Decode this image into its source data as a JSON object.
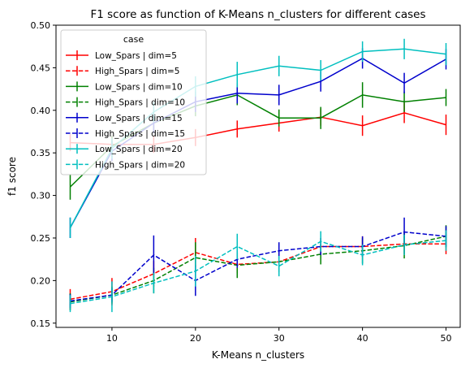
{
  "chart_data": {
    "type": "line",
    "title": "F1 score as function of K-Means n_clusters for different cases",
    "xlabel": "K-Means n_clusters",
    "ylabel": "f1 score",
    "xlim": [
      3.3,
      51.7
    ],
    "ylim": [
      0.145,
      0.5
    ],
    "xticks": [
      10,
      20,
      30,
      40,
      50
    ],
    "yticks": [
      0.15,
      0.2,
      0.25,
      0.3,
      0.35,
      0.4,
      0.45,
      0.5
    ],
    "ytick_labels": [
      "0.15",
      "0.20",
      "0.25",
      "0.30",
      "0.35",
      "0.40",
      "0.45",
      "0.50"
    ],
    "legend": {
      "title": "case",
      "placement": "upper-left"
    },
    "x": [
      5,
      10,
      15,
      20,
      25,
      30,
      35,
      40,
      45,
      50
    ],
    "series": [
      {
        "name": "Low_Spars | dim=5",
        "color": "#ff0000",
        "style": "solid",
        "values": [
          0.362,
          0.36,
          0.36,
          0.368,
          0.378,
          0.385,
          0.392,
          0.382,
          0.397,
          0.383
        ],
        "errors": [
          0.01,
          0.01,
          0.01,
          0.01,
          0.01,
          0.01,
          0.01,
          0.012,
          0.012,
          0.012
        ]
      },
      {
        "name": "High_Spars | dim=5",
        "color": "#ff0000",
        "style": "dashed",
        "values": [
          0.178,
          0.187,
          0.208,
          0.233,
          0.219,
          0.222,
          0.24,
          0.24,
          0.243,
          0.243
        ],
        "errors": [
          0.012,
          0.016,
          0.015,
          0.017,
          0.01,
          0.012,
          0.01,
          0.012,
          0.012,
          0.012
        ]
      },
      {
        "name": "Low_Spars | dim=10",
        "color": "#008000",
        "style": "solid",
        "values": [
          0.31,
          0.358,
          0.385,
          0.405,
          0.418,
          0.391,
          0.391,
          0.418,
          0.41,
          0.415
        ],
        "errors": [
          0.015,
          0.012,
          0.012,
          0.012,
          0.012,
          0.01,
          0.013,
          0.015,
          0.012,
          0.01
        ]
      },
      {
        "name": "High_Spars | dim=10",
        "color": "#008000",
        "style": "dashed",
        "values": [
          0.175,
          0.183,
          0.2,
          0.227,
          0.218,
          0.222,
          0.231,
          0.235,
          0.241,
          0.252
        ],
        "errors": [
          0.01,
          0.01,
          0.015,
          0.018,
          0.015,
          0.012,
          0.012,
          0.015,
          0.015,
          0.013
        ]
      },
      {
        "name": "Low_Spars | dim=15",
        "color": "#0000cc",
        "style": "solid",
        "values": [
          0.262,
          0.352,
          0.385,
          0.41,
          0.42,
          0.418,
          0.434,
          0.461,
          0.432,
          0.46
        ],
        "errors": [
          0.012,
          0.012,
          0.012,
          0.012,
          0.012,
          0.012,
          0.012,
          0.012,
          0.012,
          0.012
        ]
      },
      {
        "name": "High_Spars | dim=15",
        "color": "#0000cc",
        "style": "dashed",
        "values": [
          0.176,
          0.183,
          0.23,
          0.2,
          0.225,
          0.235,
          0.24,
          0.24,
          0.257,
          0.252
        ],
        "errors": [
          0.008,
          0.008,
          0.023,
          0.018,
          0.01,
          0.01,
          0.01,
          0.012,
          0.017,
          0.012
        ]
      },
      {
        "name": "Low_Spars | dim=20",
        "color": "#00bfbf",
        "style": "solid",
        "values": [
          0.262,
          0.355,
          0.398,
          0.428,
          0.442,
          0.452,
          0.447,
          0.469,
          0.472,
          0.466
        ],
        "errors": [
          0.012,
          0.012,
          0.012,
          0.012,
          0.015,
          0.012,
          0.012,
          0.012,
          0.012,
          0.013
        ]
      },
      {
        "name": "High_Spars | dim=20",
        "color": "#00bfbf",
        "style": "dashed",
        "values": [
          0.173,
          0.181,
          0.197,
          0.211,
          0.24,
          0.217,
          0.246,
          0.23,
          0.242,
          0.247
        ],
        "errors": [
          0.01,
          0.018,
          0.012,
          0.018,
          0.015,
          0.012,
          0.012,
          0.012,
          0.012,
          0.012
        ]
      }
    ]
  }
}
